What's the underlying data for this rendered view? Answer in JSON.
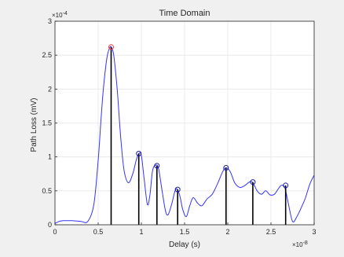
{
  "chart_data": {
    "type": "line",
    "title": "Time Domain",
    "xlabel": "Delay (s)",
    "ylabel": "Path Loss (mV)",
    "x_exponent": "×10",
    "x_exponent_power": "-8",
    "y_exponent": "×10",
    "y_exponent_power": "-4",
    "xlim": [
      0,
      3
    ],
    "ylim": [
      0,
      3
    ],
    "x_ticks": [
      "0",
      "0.5",
      "1",
      "1.5",
      "2",
      "2.5",
      "3"
    ],
    "y_ticks": [
      "0",
      "0.5",
      "1",
      "1.5",
      "2",
      "2.5",
      "3"
    ],
    "grid": true,
    "colors": {
      "line": "#3333ff",
      "stem": "#000000",
      "marker_first": "#ff3b3b",
      "marker": "#1a1aa0",
      "grid": "#e6e6e6",
      "axes": "#262626"
    },
    "curve": {
      "x": [
        0,
        0.05,
        0.1,
        0.2,
        0.3,
        0.38,
        0.45,
        0.5,
        0.53,
        0.56,
        0.6,
        0.63,
        0.65,
        0.68,
        0.72,
        0.76,
        0.8,
        0.85,
        0.9,
        0.94,
        0.97,
        1.0,
        1.03,
        1.07,
        1.1,
        1.13,
        1.17,
        1.2,
        1.24,
        1.28,
        1.31,
        1.35,
        1.39,
        1.42,
        1.45,
        1.48,
        1.52,
        1.56,
        1.6,
        1.65,
        1.7,
        1.76,
        1.82,
        1.88,
        1.94,
        1.98,
        2.03,
        2.08,
        2.14,
        2.2,
        2.25,
        2.29,
        2.34,
        2.39,
        2.44,
        2.49,
        2.54,
        2.58,
        2.62,
        2.66,
        2.7,
        2.75,
        2.8,
        2.85,
        2.9,
        2.95,
        3.0
      ],
      "y": [
        0.02,
        0.05,
        0.06,
        0.06,
        0.05,
        0.05,
        0.3,
        0.95,
        1.5,
        2.0,
        2.45,
        2.6,
        2.62,
        2.5,
        2.0,
        1.3,
        0.8,
        0.62,
        0.75,
        0.95,
        1.05,
        1.02,
        0.7,
        0.3,
        0.45,
        0.8,
        0.88,
        0.82,
        0.5,
        0.2,
        0.15,
        0.3,
        0.5,
        0.52,
        0.4,
        0.22,
        0.12,
        0.28,
        0.4,
        0.32,
        0.28,
        0.38,
        0.45,
        0.6,
        0.78,
        0.84,
        0.78,
        0.62,
        0.55,
        0.58,
        0.63,
        0.62,
        0.5,
        0.45,
        0.5,
        0.44,
        0.45,
        0.52,
        0.58,
        0.55,
        0.32,
        0.05,
        0.12,
        0.25,
        0.4,
        0.6,
        0.73
      ]
    },
    "stems": {
      "x": [
        0.65,
        0.97,
        1.18,
        1.42,
        1.98,
        2.29,
        2.67
      ],
      "y": [
        2.62,
        1.05,
        0.87,
        0.52,
        0.84,
        0.63,
        0.58
      ]
    }
  }
}
